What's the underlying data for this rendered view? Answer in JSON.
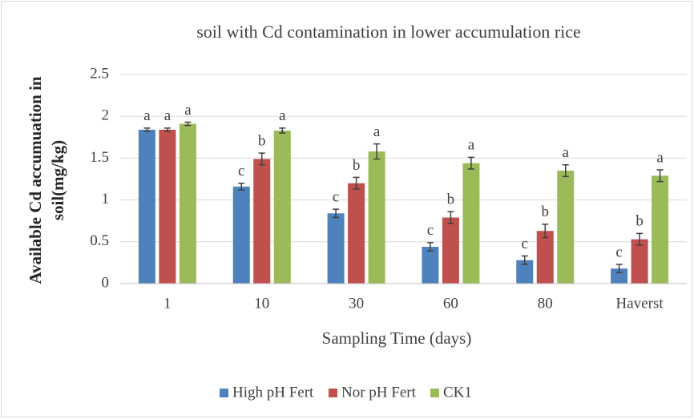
{
  "chart_data": {
    "type": "bar",
    "title": "soil with Cd contamination in lower accumulation rice",
    "xlabel": "Sampling Time (days)",
    "ylabel": [
      "Available Cd accumuation in",
      "soil(mg/kg)"
    ],
    "categories": [
      "1",
      "10",
      "30",
      "60",
      "80",
      "Haverst"
    ],
    "series": [
      {
        "name": "High pH Fert",
        "color": "#4f81bd",
        "values": [
          1.84,
          1.16,
          0.84,
          0.44,
          0.28,
          0.18
        ],
        "errors": [
          0.02,
          0.04,
          0.05,
          0.05,
          0.05,
          0.05
        ],
        "labels": [
          "a",
          "c",
          "c",
          "c",
          "c",
          "c"
        ]
      },
      {
        "name": "Nor pH Fert",
        "color": "#c0504d",
        "values": [
          1.84,
          1.49,
          1.2,
          0.79,
          0.63,
          0.53
        ],
        "errors": [
          0.02,
          0.07,
          0.07,
          0.07,
          0.08,
          0.07
        ],
        "labels": [
          "a",
          "b",
          "b",
          "b",
          "b",
          "b"
        ]
      },
      {
        "name": "CK1",
        "color": "#9bbb59",
        "values": [
          1.91,
          1.83,
          1.58,
          1.44,
          1.35,
          1.29
        ],
        "errors": [
          0.02,
          0.03,
          0.09,
          0.07,
          0.07,
          0.07
        ],
        "labels": [
          "a",
          "a",
          "a",
          "a",
          "a",
          "a"
        ]
      }
    ],
    "ylim": [
      0,
      2.5
    ],
    "yticks": [
      0,
      0.5,
      1,
      1.5,
      2,
      2.5
    ],
    "grid": true,
    "legend": "bottom"
  }
}
